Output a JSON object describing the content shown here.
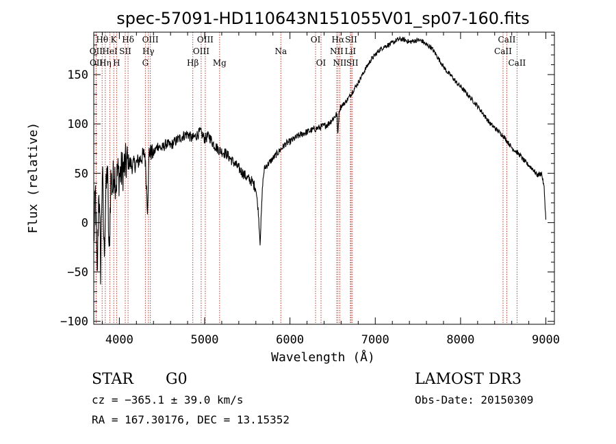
{
  "chart_data": {
    "type": "line",
    "title": "spec-57091-HD110643N151055V01_sp07-160.fits",
    "xlabel": "Wavelength (Å)",
    "ylabel": "Flux (relative)",
    "xlim": [
      3700,
      9100
    ],
    "ylim": [
      -103,
      193
    ],
    "xticks": [
      4000,
      5000,
      6000,
      7000,
      8000,
      9000
    ],
    "xtick_labels": [
      "4000",
      "5000",
      "6000",
      "7000",
      "8000",
      "9000"
    ],
    "yticks": [
      -100,
      -50,
      0,
      50,
      100,
      150
    ],
    "ytick_labels": [
      "−100",
      "−50",
      "0",
      "50",
      "100",
      "150"
    ],
    "series": [
      {
        "name": "spectrum",
        "color": "#000000",
        "x": [
          3700,
          3720,
          3740,
          3760,
          3780,
          3800,
          3820,
          3840,
          3860,
          3880,
          3900,
          3920,
          3940,
          3960,
          3980,
          4000,
          4050,
          4100,
          4150,
          4200,
          4250,
          4300,
          4330,
          4350,
          4400,
          4450,
          4500,
          4550,
          4600,
          4650,
          4700,
          4750,
          4800,
          4850,
          4900,
          4950,
          5000,
          5050,
          5100,
          5150,
          5200,
          5250,
          5300,
          5350,
          5400,
          5450,
          5500,
          5550,
          5600,
          5630,
          5650,
          5680,
          5700,
          5750,
          5800,
          5850,
          5900,
          5950,
          6000,
          6100,
          6200,
          6300,
          6400,
          6450,
          6500,
          6550,
          6560,
          6580,
          6600,
          6650,
          6700,
          6750,
          6800,
          6850,
          6900,
          6950,
          7000,
          7050,
          7100,
          7150,
          7200,
          7250,
          7300,
          7350,
          7400,
          7450,
          7500,
          7550,
          7600,
          7650,
          7700,
          7750,
          7800,
          7850,
          7900,
          7950,
          8000,
          8050,
          8100,
          8150,
          8200,
          8250,
          8300,
          8350,
          8400,
          8450,
          8500,
          8550,
          8600,
          8650,
          8700,
          8750,
          8800,
          8850,
          8900,
          8950,
          8980,
          9000
        ],
        "y": [
          -20,
          30,
          -60,
          40,
          -45,
          55,
          -30,
          20,
          60,
          -40,
          45,
          35,
          55,
          40,
          50,
          48,
          55,
          62,
          58,
          60,
          65,
          70,
          15,
          72,
          70,
          78,
          75,
          80,
          78,
          82,
          85,
          88,
          90,
          85,
          88,
          92,
          85,
          88,
          80,
          75,
          72,
          70,
          65,
          60,
          55,
          50,
          45,
          42,
          35,
          10,
          -20,
          40,
          55,
          60,
          65,
          70,
          75,
          80,
          82,
          88,
          92,
          95,
          98,
          100,
          105,
          110,
          90,
          115,
          118,
          122,
          128,
          135,
          142,
          150,
          158,
          165,
          170,
          175,
          178,
          180,
          182,
          185,
          186,
          185,
          183,
          184,
          185,
          184,
          180,
          178,
          172,
          165,
          158,
          152,
          148,
          142,
          138,
          133,
          128,
          123,
          118,
          112,
          106,
          100,
          96,
          92,
          88,
          82,
          76,
          72,
          68,
          62,
          58,
          54,
          48,
          50,
          35,
          3
        ]
      }
    ],
    "lines": [
      {
        "label": "Hθ",
        "x": 3798,
        "row": 0
      },
      {
        "label": "OII",
        "x": 3727,
        "row": 1
      },
      {
        "label": "OII",
        "x": 3729,
        "row": 2
      },
      {
        "label": "Hη",
        "x": 3835,
        "row": 2
      },
      {
        "label": "HeI",
        "x": 3889,
        "row": 1
      },
      {
        "label": "K",
        "x": 3934,
        "row": 0
      },
      {
        "label": "SII",
        "x": 4069,
        "row": 1
      },
      {
        "label": "H",
        "x": 3968,
        "row": 2
      },
      {
        "label": "Hδ",
        "x": 4102,
        "row": 0
      },
      {
        "label": "OIII",
        "x": 4363,
        "row": 0
      },
      {
        "label": "Hγ",
        "x": 4340,
        "row": 1
      },
      {
        "label": "G",
        "x": 4305,
        "row": 2
      },
      {
        "label": "Hβ",
        "x": 4861,
        "row": 2
      },
      {
        "label": "OIII",
        "x": 5007,
        "row": 0
      },
      {
        "label": "OIII",
        "x": 4959,
        "row": 1
      },
      {
        "label": "Mg",
        "x": 5175,
        "row": 2
      },
      {
        "label": "Na",
        "x": 5893,
        "row": 1
      },
      {
        "label": "OI",
        "x": 6300,
        "row": 0
      },
      {
        "label": "OI",
        "x": 6364,
        "row": 2
      },
      {
        "label": "Hα",
        "x": 6563,
        "row": 0
      },
      {
        "label": "NII",
        "x": 6548,
        "row": 1
      },
      {
        "label": "NII",
        "x": 6584,
        "row": 2
      },
      {
        "label": "SII",
        "x": 6717,
        "row": 0
      },
      {
        "label": "LiI",
        "x": 6708,
        "row": 1
      },
      {
        "label": "SII",
        "x": 6731,
        "row": 2
      },
      {
        "label": "CaII",
        "x": 8542,
        "row": 0
      },
      {
        "label": "CaII",
        "x": 8498,
        "row": 1
      },
      {
        "label": "CaII",
        "x": 8662,
        "row": 2
      }
    ]
  },
  "info": {
    "class": "STAR",
    "subclass": "G0",
    "survey": "LAMOST DR3",
    "cz": "cz = −365.1 ± 39.0 km/s",
    "obs_date": "Obs-Date: 20150309",
    "coords": "RA = 167.30176, DEC =  13.15352"
  }
}
